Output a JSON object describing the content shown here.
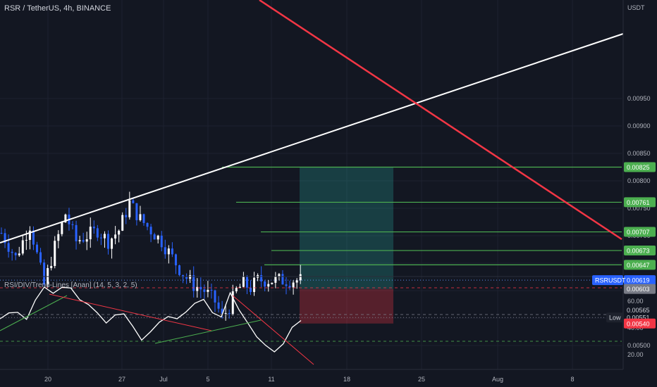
{
  "header": {
    "symbol_title": "RSR / TetherUS, 4h, BINANCE",
    "currency": "USDT"
  },
  "colors": {
    "background": "#131722",
    "up_candle": "#ffffff",
    "down_candle": "#2962ff",
    "resistance_line": "#f23645",
    "support_line": "#ffffff",
    "level_line": "#4caf50",
    "target_zone": "#26a69a",
    "stop_zone": "#f23645",
    "rsi_line": "#ffffff"
  },
  "price_axis": {
    "ticks": [
      "0.00950",
      "0.00900",
      "0.00850",
      "0.00800",
      "0.00750",
      "0.00700",
      "0.00650",
      "0.00600",
      "0.00550",
      "0.00500"
    ],
    "tags": [
      {
        "label": "0.00825",
        "value": 0.00825,
        "kind": "level"
      },
      {
        "label": "0.00761",
        "value": 0.00761,
        "kind": "level"
      },
      {
        "label": "0.00707",
        "value": 0.00707,
        "kind": "level"
      },
      {
        "label": "0.00673",
        "value": 0.00673,
        "kind": "level"
      },
      {
        "label": "0.00647",
        "value": 0.00647,
        "kind": "level"
      },
      {
        "label": "0.00619",
        "value": 0.00619,
        "kind": "last"
      },
      {
        "label": "0.00603",
        "value": 0.00603,
        "kind": "entry"
      },
      {
        "label": "0.00565",
        "value": 0.00565,
        "kind": "plain"
      },
      {
        "label": "0.00551",
        "value": 0.00551,
        "kind": "low"
      },
      {
        "label": "0.00540",
        "value": 0.0054,
        "kind": "stop"
      }
    ],
    "symbol_tag": "RSRUSDT",
    "low_tag": "Low"
  },
  "time_axis": {
    "ticks": [
      "20",
      "27",
      "Jul",
      "5",
      "11",
      "18",
      "25",
      "Aug",
      "8"
    ]
  },
  "indicator": {
    "title": "RSI/DIV/Trend-Lines [Anan] (14, 5, 3, 2, 5)",
    "ticks": [
      "60.00",
      "40.00",
      "20.00"
    ],
    "levels": [
      70,
      50,
      30
    ]
  },
  "chart_data": {
    "type": "line",
    "title": "RSR / TetherUS, 4h, BINANCE",
    "y_unit": "USDT",
    "ylim": [
      0.0048,
      0.00985
    ],
    "x_ticks": [
      "20",
      "27",
      "Jul",
      "5",
      "11",
      "18",
      "25",
      "Aug",
      "8"
    ],
    "series": [
      {
        "name": "RSRUSDT",
        "x": [
          0,
          4,
          8,
          12,
          15,
          18,
          21,
          24,
          27,
          30,
          33,
          36,
          39,
          42,
          45,
          48,
          51,
          54,
          57,
          60,
          62,
          64,
          66,
          68,
          70,
          72
        ],
        "values": [
          0.00705,
          0.0066,
          0.0072,
          0.0061,
          0.0068,
          0.0074,
          0.0069,
          0.007,
          0.0071,
          0.0069,
          0.0071,
          0.0076,
          0.0073,
          0.0071,
          0.0069,
          0.0066,
          0.0063,
          0.0061,
          0.006,
          0.0058,
          0.00551,
          0.0057,
          0.006,
          0.00612,
          0.00605,
          0.00619
        ]
      }
    ],
    "horizontal_levels": [
      0.00825,
      0.00761,
      0.00707,
      0.00673,
      0.00647
    ],
    "position": {
      "entry": 0.00603,
      "target": 0.00825,
      "stop": 0.0054,
      "last": 0.00619,
      "low": 0.00551
    },
    "trend_lines": [
      {
        "name": "support",
        "from": [
          0,
          0.00545
        ],
        "to": [
          170,
          0.00935
        ]
      },
      {
        "name": "resistance",
        "from": [
          67,
          0.0098
        ],
        "to": [
          162,
          0.00565
        ]
      }
    ],
    "rsi": {
      "ylim": [
        12,
        78
      ],
      "levels": [
        70,
        50,
        30
      ],
      "values": [
        45,
        50,
        52,
        48,
        62,
        72,
        65,
        70,
        68,
        62,
        58,
        52,
        45,
        48,
        50,
        40,
        30,
        38,
        44,
        50,
        46,
        50,
        58,
        62,
        52,
        48,
        66,
        55,
        44,
        32,
        26,
        22,
        28,
        40,
        46
      ]
    }
  }
}
